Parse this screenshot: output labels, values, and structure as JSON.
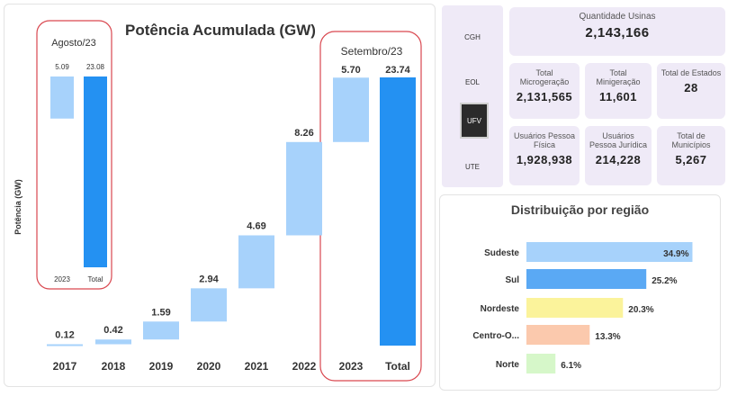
{
  "waterfall": {
    "title": "Potência Acumulada (GW)",
    "ylabel": "Potência (GW)",
    "inset_label": "Agosto/23",
    "inset_bars": [
      {
        "x": "2023",
        "value": 5.09,
        "label": "5.09",
        "start": 17.99,
        "end": 23.08
      },
      {
        "x": "Total",
        "value": 23.08,
        "label": "23.08",
        "start": 0,
        "end": 23.08
      }
    ],
    "highlight_label": "Setembro/23"
  },
  "chart_data": [
    {
      "type": "bar",
      "subtype": "waterfall",
      "title": "Potência Acumulada (GW)",
      "ylabel": "Potência (GW)",
      "categories": [
        "2017",
        "2018",
        "2019",
        "2020",
        "2021",
        "2022",
        "2023",
        "Total"
      ],
      "values": [
        0.12,
        0.42,
        1.59,
        2.94,
        4.69,
        8.26,
        5.7,
        23.74
      ],
      "labels": [
        "0.12",
        "0.42",
        "1.59",
        "2.94",
        "4.69",
        "8.26",
        "5.70",
        "23.74"
      ],
      "starts": [
        0,
        0.12,
        0.54,
        2.13,
        5.07,
        9.76,
        18.02,
        0
      ],
      "ends": [
        0.12,
        0.54,
        2.13,
        5.07,
        9.76,
        18.02,
        23.72,
        23.74
      ],
      "colors": {
        "increase": "#a7d2fb",
        "total": "#2491f2"
      },
      "ylim": [
        0,
        24
      ]
    },
    {
      "type": "bar",
      "orientation": "horizontal",
      "title": "Distribuição por região",
      "categories": [
        "Sudeste",
        "Sul",
        "Nordeste",
        "Centro-O...",
        "Norte"
      ],
      "values": [
        34.9,
        25.2,
        20.3,
        13.3,
        6.1
      ],
      "labels": [
        "34.9%",
        "25.2%",
        "20.3%",
        "13.3%",
        "6.1%"
      ],
      "colors": [
        "#a7d2fb",
        "#5aa9f4",
        "#fbf39b",
        "#fbc9ad",
        "#d6f7c9"
      ],
      "xlim": [
        0,
        35
      ]
    }
  ],
  "nav": {
    "items": [
      {
        "label": "CGH"
      },
      {
        "label": "EOL"
      },
      {
        "label": "UFV"
      },
      {
        "label": "UTE"
      }
    ]
  },
  "cards": {
    "quantidade": {
      "label": "Quantidade Usinas",
      "value": "2,143,166"
    },
    "micro": {
      "label": "Total Microgeração",
      "value": "2,131,565"
    },
    "mini": {
      "label": "Total Minigeração",
      "value": "11,601"
    },
    "estados": {
      "label": "Total de Estados",
      "value": "28"
    },
    "pf": {
      "label": "Usuários Pessoa Física",
      "value": "1,928,938"
    },
    "pj": {
      "label": "Usuários Pessoa Jurídica",
      "value": "214,228"
    },
    "municipios": {
      "label": "Total de Municípios",
      "value": "5,267"
    }
  }
}
